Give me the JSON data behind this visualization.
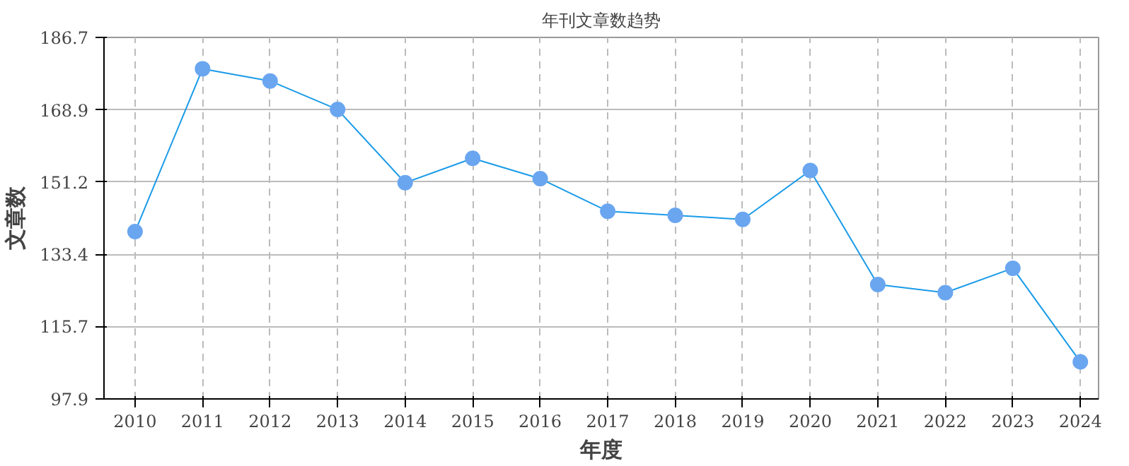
{
  "chart_data": {
    "type": "line",
    "title": "年刊文章数趋势",
    "xlabel": "年度",
    "ylabel": "文章数",
    "categories": [
      "2010",
      "2011",
      "2012",
      "2013",
      "2014",
      "2015",
      "2016",
      "2017",
      "2018",
      "2019",
      "2020",
      "2021",
      "2022",
      "2023",
      "2024"
    ],
    "series": [
      {
        "color": "#1a9be8",
        "values": [
          139,
          179,
          176,
          169,
          151,
          157,
          152,
          144,
          143,
          142,
          154,
          126,
          124,
          130,
          107
        ]
      }
    ],
    "ylim": [
      97.9,
      186.7
    ],
    "yticks": [
      97.9,
      115.7,
      133.4,
      151.2,
      168.9,
      186.7
    ],
    "grid": true,
    "marker": "circle",
    "line_style": "solid"
  }
}
